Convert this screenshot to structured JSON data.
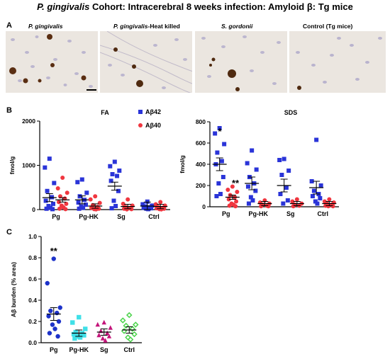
{
  "title": {
    "organism": "P. gingivalis",
    "rest": " Cohort: Intracerebral 8 weeks infection: Amyloid β: Tg mice"
  },
  "panel_labels": {
    "a": "A",
    "b": "B",
    "c": "C"
  },
  "micrographs": [
    {
      "italic": "P. gingivalis",
      "plain": ""
    },
    {
      "italic": "P. gingivalis",
      "plain": "-Heat killed"
    },
    {
      "italic": "S. gordonii",
      "plain": ""
    },
    {
      "italic": "",
      "plain": "Control (Tg mice)"
    }
  ],
  "colors": {
    "ab42": "#2a34d8",
    "ab40": "#f0363f",
    "pg": "#1d32c9",
    "pghk": "#3fe0e8",
    "sg": "#c4147a",
    "ctrl": "#4cd44c"
  },
  "chart_data": [
    {
      "type": "scatter",
      "title": "FA",
      "ylabel": "fmol/g",
      "categories": [
        "Pg",
        "Pg-HK",
        "Sg",
        "Ctrl"
      ],
      "yticks": [
        "0",
        "1000",
        "2000"
      ],
      "ylim": [
        0,
        2000
      ],
      "legend": [
        "Aβ42",
        "Aβ40"
      ],
      "legend_position": "top-right",
      "series": [
        {
          "name": "Aβ42",
          "marker": "square",
          "mean": [
            270,
            220,
            530,
            80
          ],
          "sem": 90,
          "values": [
            [
              1150,
              950,
              600,
              420,
              280,
              200,
              130,
              80,
              40,
              20,
              10
            ],
            [
              680,
              620,
              380,
              300,
              220,
              160,
              110,
              70,
              40,
              20
            ],
            [
              1080,
              980,
              880,
              800,
              760,
              650,
              420,
              200,
              80,
              30
            ],
            [
              180,
              120,
              90,
              70,
              50,
              40,
              30,
              20,
              10
            ]
          ]
        },
        {
          "name": "Aβ40",
          "marker": "circle",
          "mean": [
            220,
            80,
            70,
            70
          ],
          "sem": 50,
          "values": [
            [
              720,
              480,
              380,
              300,
              250,
              170,
              130,
              90,
              50,
              20,
              10
            ],
            [
              300,
              230,
              150,
              100,
              60,
              40,
              20,
              10,
              5
            ],
            [
              230,
              130,
              90,
              60,
              40,
              20,
              10,
              5
            ],
            [
              170,
              120,
              90,
              60,
              40,
              30,
              20,
              10,
              5
            ]
          ]
        }
      ]
    },
    {
      "type": "scatter",
      "title": "SDS",
      "ylabel": "fmol/g",
      "categories": [
        "Pg",
        "Pg-HK",
        "Sg",
        "Ctrl"
      ],
      "yticks": [
        "0",
        "200",
        "400",
        "600",
        "800"
      ],
      "ylim": [
        0,
        800
      ],
      "annotations": [
        "*",
        "**"
      ],
      "series": [
        {
          "name": "Aβ42",
          "marker": "square",
          "mean": [
            400,
            220,
            200,
            180
          ],
          "sem": 60,
          "values": [
            [
              740,
              690,
              590,
              510,
              430,
              400,
              280,
              220,
              120,
              100
            ],
            [
              530,
              410,
              350,
              280,
              220,
              190,
              150,
              90,
              60,
              30
            ],
            [
              450,
              440,
              340,
              300,
              180,
              120,
              60,
              30
            ],
            [
              630,
              240,
              200,
              150,
              120,
              100,
              80,
              50,
              30
            ]
          ]
        },
        {
          "name": "Aβ40",
          "marker": "circle",
          "mean": [
            90,
            30,
            30,
            30
          ],
          "sem": 20,
          "values": [
            [
              190,
              160,
              140,
              110,
              90,
              70,
              50,
              30,
              20,
              10,
              5
            ],
            [
              60,
              40,
              30,
              20,
              10,
              5,
              5
            ],
            [
              70,
              50,
              30,
              20,
              10,
              5
            ],
            [
              70,
              50,
              40,
              30,
              20,
              10,
              5,
              5
            ]
          ]
        }
      ]
    },
    {
      "type": "scatter",
      "ylabel": "Aβ burden (% area)",
      "categories": [
        "Pg",
        "Pg-HK",
        "Sg",
        "Ctrl"
      ],
      "yticks": [
        "0.0",
        "0.2",
        "0.4",
        "0.6",
        "0.8",
        "1.0"
      ],
      "ylim": [
        0,
        1.0
      ],
      "annotations": [
        "**"
      ],
      "series": [
        {
          "name": "Pg",
          "marker": "circle",
          "mean": 0.27,
          "sem": 0.06,
          "values": [
            0.79,
            0.56,
            0.33,
            0.3,
            0.28,
            0.25,
            0.2,
            0.17,
            0.13,
            0.09,
            0.06
          ]
        },
        {
          "name": "Pg-HK",
          "marker": "square",
          "mean": 0.09,
          "sem": 0.03,
          "values": [
            0.24,
            0.19,
            0.13,
            0.1,
            0.09,
            0.08,
            0.07,
            0.06,
            0.05,
            0.04
          ]
        },
        {
          "name": "Sg",
          "marker": "triangle",
          "mean": 0.1,
          "sem": 0.03,
          "values": [
            0.19,
            0.17,
            0.14,
            0.11,
            0.09,
            0.07,
            0.06,
            0.04,
            0.02
          ]
        },
        {
          "name": "Ctrl",
          "marker": "diamond",
          "mean": 0.12,
          "sem": 0.03,
          "values": [
            0.26,
            0.21,
            0.17,
            0.16,
            0.13,
            0.11,
            0.08,
            0.05,
            0.03
          ]
        }
      ]
    }
  ]
}
